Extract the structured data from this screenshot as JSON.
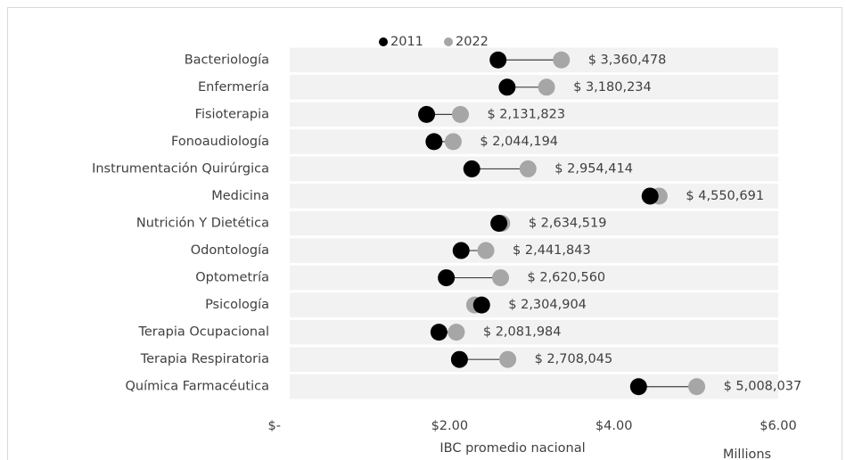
{
  "chart_data": {
    "type": "dumbbell",
    "categories": [
      "Bacteriología",
      "Enfermería",
      "Fisioterapia",
      "Fonoaudiología",
      "Instrumentación Quirúrgica",
      "Medicina",
      "Nutrición Y Dietética",
      "Odontología",
      "Optometría",
      "Psicología",
      "Terapia Ocupacional",
      "Terapia Respiratoria",
      "Química Farmacéutica"
    ],
    "series": [
      {
        "name": "2011",
        "color": "#000000",
        "values": [
          2.59,
          2.7,
          1.72,
          1.81,
          2.27,
          4.44,
          2.6,
          2.14,
          1.96,
          2.39,
          1.87,
          2.12,
          4.3
        ]
      },
      {
        "name": "2022",
        "color": "#a6a6a6",
        "values": [
          3.360478,
          3.180234,
          2.131823,
          2.044194,
          2.954414,
          4.550691,
          2.634519,
          2.441843,
          2.62056,
          2.304904,
          2.081984,
          2.708045,
          5.008037
        ],
        "value_labels": [
          "$ 3,360,478",
          "$ 3,180,234",
          "$ 2,131,823",
          "$ 2,044,194",
          "$ 2,954,414",
          "$ 4,550,691",
          "$ 2,634,519",
          "$ 2,441,843",
          "$ 2,620,560",
          "$ 2,304,904",
          "$ 2,081,984",
          "$ 2,708,045",
          "$ 5,008,037"
        ]
      }
    ],
    "xlim": [
      0,
      6
    ],
    "xticks": [
      {
        "value": 0,
        "label": "$-"
      },
      {
        "value": 2,
        "label": "$2.00"
      },
      {
        "value": 4,
        "label": "$4.00"
      },
      {
        "value": 6,
        "label": "$6.00"
      }
    ],
    "xlabel": "IBC promedio nacional",
    "x_unit_label": "Millions",
    "legend": "top"
  }
}
